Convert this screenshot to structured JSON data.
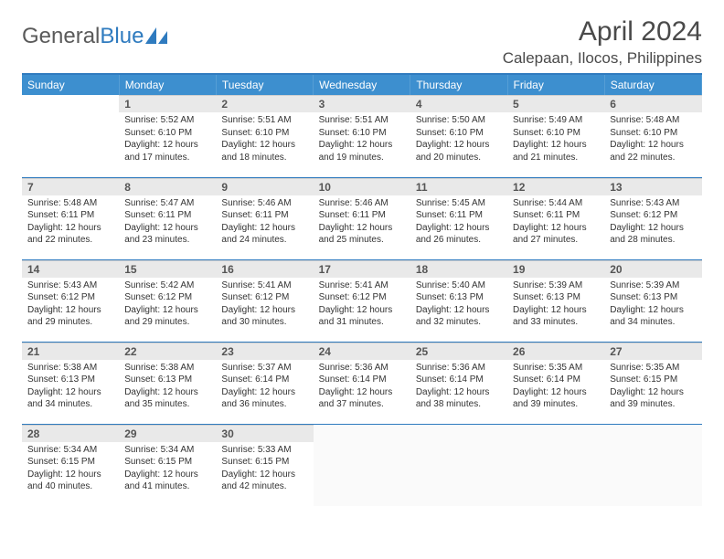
{
  "logo": {
    "text1": "General",
    "text2": "Blue"
  },
  "title": "April 2024",
  "location": "Calepaan, Ilocos, Philippines",
  "colors": {
    "header_bg": "#3d8fcf",
    "header_text": "#ffffff",
    "border": "#2f7bbf",
    "daynum_bg": "#e9e9e9",
    "daynum_text": "#555555",
    "body_text": "#333333",
    "logo_gray": "#5a5a5a",
    "logo_blue": "#2f7bbf"
  },
  "typography": {
    "month_title_fontsize": 30,
    "location_fontsize": 17,
    "weekday_fontsize": 12,
    "daynum_fontsize": 12,
    "body_fontsize": 10
  },
  "weekdays": [
    "Sunday",
    "Monday",
    "Tuesday",
    "Wednesday",
    "Thursday",
    "Friday",
    "Saturday"
  ],
  "weeks": [
    [
      null,
      {
        "n": "1",
        "sr": "5:52 AM",
        "ss": "6:10 PM",
        "dl": "12 hours and 17 minutes."
      },
      {
        "n": "2",
        "sr": "5:51 AM",
        "ss": "6:10 PM",
        "dl": "12 hours and 18 minutes."
      },
      {
        "n": "3",
        "sr": "5:51 AM",
        "ss": "6:10 PM",
        "dl": "12 hours and 19 minutes."
      },
      {
        "n": "4",
        "sr": "5:50 AM",
        "ss": "6:10 PM",
        "dl": "12 hours and 20 minutes."
      },
      {
        "n": "5",
        "sr": "5:49 AM",
        "ss": "6:10 PM",
        "dl": "12 hours and 21 minutes."
      },
      {
        "n": "6",
        "sr": "5:48 AM",
        "ss": "6:10 PM",
        "dl": "12 hours and 22 minutes."
      }
    ],
    [
      {
        "n": "7",
        "sr": "5:48 AM",
        "ss": "6:11 PM",
        "dl": "12 hours and 22 minutes."
      },
      {
        "n": "8",
        "sr": "5:47 AM",
        "ss": "6:11 PM",
        "dl": "12 hours and 23 minutes."
      },
      {
        "n": "9",
        "sr": "5:46 AM",
        "ss": "6:11 PM",
        "dl": "12 hours and 24 minutes."
      },
      {
        "n": "10",
        "sr": "5:46 AM",
        "ss": "6:11 PM",
        "dl": "12 hours and 25 minutes."
      },
      {
        "n": "11",
        "sr": "5:45 AM",
        "ss": "6:11 PM",
        "dl": "12 hours and 26 minutes."
      },
      {
        "n": "12",
        "sr": "5:44 AM",
        "ss": "6:11 PM",
        "dl": "12 hours and 27 minutes."
      },
      {
        "n": "13",
        "sr": "5:43 AM",
        "ss": "6:12 PM",
        "dl": "12 hours and 28 minutes."
      }
    ],
    [
      {
        "n": "14",
        "sr": "5:43 AM",
        "ss": "6:12 PM",
        "dl": "12 hours and 29 minutes."
      },
      {
        "n": "15",
        "sr": "5:42 AM",
        "ss": "6:12 PM",
        "dl": "12 hours and 29 minutes."
      },
      {
        "n": "16",
        "sr": "5:41 AM",
        "ss": "6:12 PM",
        "dl": "12 hours and 30 minutes."
      },
      {
        "n": "17",
        "sr": "5:41 AM",
        "ss": "6:12 PM",
        "dl": "12 hours and 31 minutes."
      },
      {
        "n": "18",
        "sr": "5:40 AM",
        "ss": "6:13 PM",
        "dl": "12 hours and 32 minutes."
      },
      {
        "n": "19",
        "sr": "5:39 AM",
        "ss": "6:13 PM",
        "dl": "12 hours and 33 minutes."
      },
      {
        "n": "20",
        "sr": "5:39 AM",
        "ss": "6:13 PM",
        "dl": "12 hours and 34 minutes."
      }
    ],
    [
      {
        "n": "21",
        "sr": "5:38 AM",
        "ss": "6:13 PM",
        "dl": "12 hours and 34 minutes."
      },
      {
        "n": "22",
        "sr": "5:38 AM",
        "ss": "6:13 PM",
        "dl": "12 hours and 35 minutes."
      },
      {
        "n": "23",
        "sr": "5:37 AM",
        "ss": "6:14 PM",
        "dl": "12 hours and 36 minutes."
      },
      {
        "n": "24",
        "sr": "5:36 AM",
        "ss": "6:14 PM",
        "dl": "12 hours and 37 minutes."
      },
      {
        "n": "25",
        "sr": "5:36 AM",
        "ss": "6:14 PM",
        "dl": "12 hours and 38 minutes."
      },
      {
        "n": "26",
        "sr": "5:35 AM",
        "ss": "6:14 PM",
        "dl": "12 hours and 39 minutes."
      },
      {
        "n": "27",
        "sr": "5:35 AM",
        "ss": "6:15 PM",
        "dl": "12 hours and 39 minutes."
      }
    ],
    [
      {
        "n": "28",
        "sr": "5:34 AM",
        "ss": "6:15 PM",
        "dl": "12 hours and 40 minutes."
      },
      {
        "n": "29",
        "sr": "5:34 AM",
        "ss": "6:15 PM",
        "dl": "12 hours and 41 minutes."
      },
      {
        "n": "30",
        "sr": "5:33 AM",
        "ss": "6:15 PM",
        "dl": "12 hours and 42 minutes."
      },
      null,
      null,
      null,
      null
    ]
  ],
  "labels": {
    "sunrise": "Sunrise:",
    "sunset": "Sunset:",
    "daylight": "Daylight:"
  }
}
